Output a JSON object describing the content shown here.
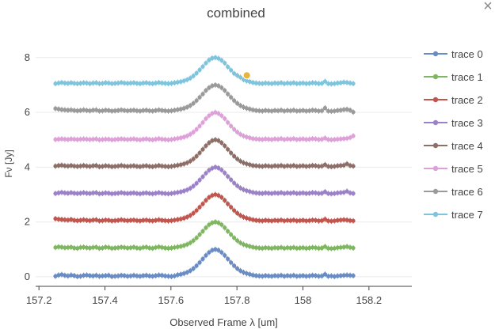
{
  "window": {
    "close_symbol": "×"
  },
  "chart_data": {
    "type": "line",
    "title": "combined",
    "xlabel": "Observed Frame λ [um]",
    "ylabel": "Fν [Jy]",
    "xlim": [
      157.19,
      158.33
    ],
    "ylim": [
      -0.35,
      8.6
    ],
    "x_ticks": [
      157.2,
      157.4,
      157.6,
      157.8,
      158.0,
      158.2
    ],
    "x_tick_labels": [
      "157.2",
      "157.4",
      "157.6",
      "157.8",
      "158",
      "158.2"
    ],
    "y_ticks": [
      0,
      2,
      4,
      6,
      8
    ],
    "y_tick_labels": [
      "0",
      "2",
      "4",
      "6",
      "8"
    ],
    "grid": "horizontal",
    "legend_position": "right",
    "error_bars": true,
    "x_start": 157.25,
    "x_step": 0.0095,
    "series": [
      {
        "name": "trace 0",
        "color": "#6a8cc4",
        "values": [
          0.02,
          0.06,
          0.08,
          0.05,
          0.03,
          0.06,
          0.04,
          0.01,
          0.02,
          0.05,
          0.06,
          0.04,
          0.03,
          0.05,
          0.02,
          0.03,
          0.04,
          0.05,
          0.01,
          0.02,
          0.03,
          0.05,
          0.04,
          0.02,
          0.03,
          0.05,
          0.03,
          0.02,
          0.04,
          0.05,
          0.03,
          0.02,
          0.04,
          0.06,
          0.05,
          0.03,
          0.02,
          0.01,
          0.03,
          0.07,
          0.09,
          0.12,
          0.16,
          0.22,
          0.3,
          0.4,
          0.52,
          0.65,
          0.78,
          0.89,
          0.97,
          1.0,
          0.97,
          0.89,
          0.78,
          0.65,
          0.52,
          0.4,
          0.3,
          0.22,
          0.16,
          0.12,
          0.09,
          0.06,
          0.04,
          0.03,
          0.02,
          0.04,
          0.03,
          0.02,
          0.04,
          0.03,
          0.05,
          0.02,
          0.04,
          0.03,
          0.05,
          0.02,
          0.03,
          0.04,
          0.02,
          0.03,
          0.05,
          0.04,
          0.02,
          0.03,
          0.09,
          0.02,
          0.03,
          0.01,
          0.03,
          0.04,
          0.05,
          0.06,
          0.05,
          0.04
        ]
      },
      {
        "name": "trace 1",
        "color": "#7fb661",
        "values": [
          1.07,
          1.09,
          1.08,
          1.06,
          1.07,
          1.08,
          1.05,
          1.04,
          1.07,
          1.08,
          1.06,
          1.05,
          1.07,
          1.08,
          1.04,
          1.05,
          1.08,
          1.07,
          1.04,
          1.05,
          1.06,
          1.08,
          1.07,
          1.05,
          1.06,
          1.08,
          1.05,
          1.04,
          1.07,
          1.08,
          1.05,
          1.04,
          1.07,
          1.09,
          1.07,
          1.05,
          1.04,
          1.05,
          1.07,
          1.09,
          1.11,
          1.14,
          1.18,
          1.24,
          1.32,
          1.42,
          1.54,
          1.66,
          1.79,
          1.9,
          1.97,
          2.0,
          1.97,
          1.9,
          1.79,
          1.66,
          1.54,
          1.42,
          1.32,
          1.24,
          1.18,
          1.14,
          1.11,
          1.08,
          1.06,
          1.05,
          1.04,
          1.06,
          1.05,
          1.04,
          1.06,
          1.05,
          1.07,
          1.04,
          1.06,
          1.05,
          1.07,
          1.04,
          1.05,
          1.06,
          1.04,
          1.05,
          1.07,
          1.06,
          1.04,
          1.05,
          1.1,
          1.04,
          1.03,
          1.04,
          1.06,
          1.07,
          1.08,
          1.1,
          1.07,
          1.05
        ]
      },
      {
        "name": "trace 2",
        "color": "#c0564e",
        "values": [
          2.12,
          2.1,
          2.09,
          2.08,
          2.07,
          2.09,
          2.06,
          2.05,
          2.06,
          2.08,
          2.06,
          2.05,
          2.07,
          2.08,
          2.04,
          2.05,
          2.07,
          2.06,
          2.04,
          2.05,
          2.06,
          2.08,
          2.06,
          2.05,
          2.06,
          2.07,
          2.05,
          2.04,
          2.06,
          2.07,
          2.05,
          2.04,
          2.06,
          2.08,
          2.06,
          2.05,
          2.04,
          2.05,
          2.07,
          2.09,
          2.11,
          2.14,
          2.18,
          2.24,
          2.32,
          2.42,
          2.54,
          2.66,
          2.79,
          2.9,
          2.97,
          3.0,
          2.97,
          2.9,
          2.79,
          2.66,
          2.54,
          2.42,
          2.32,
          2.24,
          2.18,
          2.14,
          2.11,
          2.08,
          2.06,
          2.05,
          2.04,
          2.06,
          2.05,
          2.04,
          2.06,
          2.05,
          2.07,
          2.04,
          2.06,
          2.05,
          2.07,
          2.04,
          2.05,
          2.06,
          2.04,
          2.05,
          2.07,
          2.06,
          2.04,
          2.05,
          2.1,
          2.04,
          2.03,
          2.04,
          2.06,
          2.07,
          2.08,
          2.07,
          2.05,
          2.04
        ]
      },
      {
        "name": "trace 3",
        "color": "#9b82c8",
        "values": [
          3.04,
          3.06,
          3.08,
          3.06,
          3.05,
          3.07,
          3.05,
          3.04,
          3.05,
          3.07,
          3.05,
          3.04,
          3.06,
          3.07,
          3.03,
          3.04,
          3.06,
          3.05,
          3.03,
          3.04,
          3.05,
          3.07,
          3.05,
          3.04,
          3.05,
          3.06,
          3.04,
          3.03,
          3.05,
          3.06,
          3.04,
          3.03,
          3.05,
          3.07,
          3.05,
          3.04,
          3.03,
          3.04,
          3.06,
          3.08,
          3.1,
          3.13,
          3.17,
          3.23,
          3.31,
          3.41,
          3.53,
          3.65,
          3.78,
          3.89,
          3.96,
          4.0,
          3.97,
          3.9,
          3.79,
          3.66,
          3.54,
          3.42,
          3.32,
          3.24,
          3.18,
          3.14,
          3.11,
          3.08,
          3.06,
          3.05,
          3.04,
          3.06,
          3.05,
          3.04,
          3.06,
          3.05,
          3.07,
          3.04,
          3.06,
          3.05,
          3.07,
          3.04,
          3.05,
          3.06,
          3.04,
          3.05,
          3.07,
          3.06,
          3.04,
          3.05,
          3.1,
          3.04,
          3.03,
          3.04,
          3.06,
          3.07,
          3.08,
          3.12,
          3.06,
          3.04
        ]
      },
      {
        "name": "trace 4",
        "color": "#8e6f68",
        "values": [
          4.04,
          4.06,
          4.07,
          4.05,
          4.04,
          4.06,
          4.04,
          4.03,
          4.04,
          4.06,
          4.04,
          4.03,
          4.05,
          4.06,
          4.02,
          4.03,
          4.05,
          4.04,
          4.02,
          4.03,
          4.04,
          4.06,
          4.04,
          4.03,
          4.04,
          4.05,
          4.03,
          4.02,
          4.04,
          4.05,
          4.03,
          4.02,
          4.04,
          4.06,
          4.04,
          4.03,
          4.02,
          4.03,
          4.05,
          4.07,
          4.09,
          4.12,
          4.16,
          4.22,
          4.3,
          4.4,
          4.52,
          4.65,
          4.78,
          4.89,
          4.97,
          5.0,
          4.97,
          4.89,
          4.78,
          4.65,
          4.52,
          4.4,
          4.3,
          4.22,
          4.16,
          4.12,
          4.09,
          4.06,
          4.05,
          4.04,
          4.03,
          4.05,
          4.04,
          4.03,
          4.05,
          4.04,
          4.06,
          4.03,
          4.05,
          4.04,
          4.06,
          4.03,
          4.04,
          4.05,
          4.03,
          4.04,
          4.06,
          4.05,
          4.03,
          4.04,
          4.09,
          4.03,
          4.02,
          4.03,
          4.05,
          4.06,
          4.07,
          4.12,
          4.06,
          4.04
        ]
      },
      {
        "name": "trace 5",
        "color": "#dda0d8",
        "values": [
          5.01,
          5.02,
          5.03,
          5.02,
          5.01,
          5.03,
          5.02,
          5.01,
          5.02,
          5.03,
          5.02,
          5.01,
          5.02,
          5.03,
          5.0,
          5.01,
          5.02,
          5.02,
          5.0,
          5.01,
          5.02,
          5.03,
          5.02,
          5.01,
          5.02,
          5.03,
          5.01,
          5.0,
          5.02,
          5.03,
          5.01,
          5.0,
          5.02,
          5.04,
          5.02,
          5.01,
          5.0,
          5.01,
          5.03,
          5.05,
          5.07,
          5.1,
          5.14,
          5.2,
          5.28,
          5.38,
          5.5,
          5.63,
          5.77,
          5.88,
          5.96,
          6.0,
          5.96,
          5.88,
          5.77,
          5.63,
          5.5,
          5.38,
          5.28,
          5.2,
          5.14,
          5.1,
          5.07,
          5.04,
          5.03,
          5.02,
          5.01,
          5.03,
          5.02,
          5.01,
          5.03,
          5.02,
          5.04,
          5.01,
          5.03,
          5.02,
          5.04,
          5.01,
          5.02,
          5.03,
          5.01,
          5.02,
          5.04,
          5.03,
          5.01,
          5.02,
          5.06,
          5.01,
          5.0,
          5.01,
          5.02,
          5.03,
          5.04,
          5.05,
          5.08,
          5.14
        ]
      },
      {
        "name": "trace 6",
        "color": "#9a9a9a",
        "values": [
          6.14,
          6.12,
          6.1,
          6.09,
          6.08,
          6.09,
          6.07,
          6.06,
          6.07,
          6.09,
          6.07,
          6.06,
          6.08,
          6.09,
          6.05,
          6.06,
          6.08,
          6.07,
          6.05,
          6.06,
          6.07,
          6.09,
          6.07,
          6.06,
          6.07,
          6.08,
          6.06,
          6.05,
          6.07,
          6.08,
          6.06,
          6.05,
          6.07,
          6.09,
          6.07,
          6.06,
          6.05,
          6.06,
          6.08,
          6.1,
          6.12,
          6.15,
          6.19,
          6.25,
          6.33,
          6.43,
          6.55,
          6.67,
          6.8,
          6.9,
          6.97,
          7.0,
          6.97,
          6.9,
          6.8,
          6.67,
          6.55,
          6.43,
          6.33,
          6.25,
          6.19,
          6.15,
          6.12,
          6.09,
          6.07,
          6.06,
          6.05,
          6.07,
          6.06,
          6.05,
          6.07,
          6.06,
          6.08,
          6.05,
          6.07,
          6.06,
          6.08,
          6.05,
          6.06,
          6.07,
          6.05,
          6.06,
          6.08,
          6.07,
          6.05,
          6.06,
          6.16,
          6.05,
          6.04,
          6.05,
          6.07,
          6.08,
          6.1,
          6.11,
          6.08,
          6.01
        ]
      },
      {
        "name": "trace 7",
        "color": "#7ec4dc",
        "values": [
          7.05,
          7.07,
          7.09,
          7.07,
          7.06,
          7.08,
          7.06,
          7.05,
          7.06,
          7.08,
          7.07,
          7.05,
          7.07,
          7.08,
          7.05,
          7.06,
          7.08,
          7.07,
          7.05,
          7.06,
          7.07,
          7.09,
          7.07,
          7.06,
          7.07,
          7.08,
          7.06,
          7.05,
          7.07,
          7.08,
          7.06,
          7.05,
          7.07,
          7.09,
          7.07,
          7.06,
          7.05,
          7.06,
          7.08,
          7.1,
          7.12,
          7.15,
          7.19,
          7.25,
          7.33,
          7.43,
          7.55,
          7.67,
          7.8,
          7.91,
          7.98,
          8.0,
          7.97,
          7.9,
          7.8,
          7.66,
          7.54,
          7.42,
          7.35,
          7.28,
          7.2,
          7.15,
          7.12,
          7.09,
          7.07,
          7.06,
          7.05,
          7.07,
          7.06,
          7.05,
          7.07,
          7.06,
          7.08,
          7.05,
          7.07,
          7.06,
          7.08,
          7.05,
          7.06,
          7.07,
          7.05,
          7.06,
          7.08,
          7.07,
          7.05,
          7.06,
          7.13,
          7.05,
          7.04,
          7.05,
          7.07,
          7.08,
          7.1,
          7.09,
          7.07,
          7.05
        ]
      }
    ],
    "highlight": {
      "series": "trace 7",
      "x": 157.83,
      "y": 7.35,
      "color": "#e8b53c"
    }
  }
}
